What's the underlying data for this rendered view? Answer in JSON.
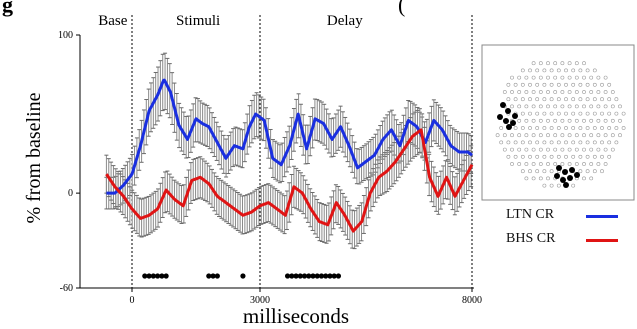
{
  "chart_data": {
    "type": "line",
    "title_fragment": "g",
    "title_right_fragment": "(",
    "xlabel": "milliseconds",
    "ylabel": "% from baseline",
    "xlim": [
      -750,
      8000
    ],
    "ylim": [
      -60,
      100
    ],
    "y_ticks": [
      100,
      0,
      -60
    ],
    "x_ticks": [
      0,
      3000,
      8000
    ],
    "epochs": [
      {
        "label": "Base",
        "center": -450
      },
      {
        "label": "Stimuli",
        "center": 1550
      },
      {
        "label": "Delay",
        "center": 5000
      }
    ],
    "epoch_boundaries": [
      0,
      3000,
      8000
    ],
    "series": [
      {
        "name": "LTN CR",
        "color": "#1a2fe0",
        "x": [
          -600,
          -400,
          -200,
          0,
          200,
          400,
          600,
          750,
          900,
          1100,
          1300,
          1500,
          1650,
          1800,
          2000,
          2200,
          2400,
          2600,
          2750,
          2900,
          3100,
          3300,
          3500,
          3700,
          3900,
          4100,
          4300,
          4500,
          4700,
          4900,
          5100,
          5300,
          5500,
          5700,
          5900,
          6100,
          6300,
          6500,
          6700,
          6900,
          7100,
          7300,
          7500,
          7700,
          7900,
          8000
        ],
        "y": [
          0,
          0,
          5,
          12,
          30,
          52,
          62,
          72,
          64,
          43,
          34,
          47,
          44,
          42,
          32,
          22,
          30,
          28,
          42,
          50,
          46,
          22,
          18,
          30,
          50,
          28,
          47,
          44,
          34,
          42,
          30,
          16,
          20,
          24,
          34,
          40,
          30,
          46,
          42,
          32,
          46,
          40,
          30,
          26,
          26,
          24
        ],
        "err": [
          10,
          10,
          11,
          12,
          13,
          15,
          17,
          18,
          17,
          14,
          13,
          14,
          13,
          13,
          12,
          12,
          12,
          12,
          13,
          14,
          13,
          12,
          12,
          13,
          14,
          12,
          13,
          13,
          12,
          13,
          12,
          11,
          11,
          12,
          12,
          13,
          12,
          13,
          13,
          12,
          13,
          13,
          12,
          12,
          12,
          12
        ]
      },
      {
        "name": "BHS CR",
        "color": "#e01414",
        "x": [
          -600,
          -400,
          -200,
          0,
          200,
          400,
          600,
          800,
          1000,
          1200,
          1400,
          1600,
          1800,
          2000,
          2200,
          2400,
          2600,
          2800,
          3000,
          3200,
          3400,
          3600,
          3800,
          4000,
          4200,
          4400,
          4600,
          4800,
          5000,
          5200,
          5400,
          5600,
          5800,
          6000,
          6200,
          6400,
          6600,
          6800,
          7000,
          7200,
          7400,
          7600,
          7800,
          8000
        ],
        "y": [
          12,
          4,
          -2,
          -10,
          -16,
          -14,
          -10,
          2,
          -4,
          -8,
          8,
          10,
          6,
          -2,
          -6,
          -10,
          -14,
          -12,
          -8,
          -6,
          -10,
          -14,
          4,
          0,
          -10,
          -18,
          -20,
          -6,
          -14,
          -24,
          -18,
          0,
          10,
          14,
          20,
          28,
          36,
          40,
          10,
          -2,
          10,
          -2,
          8,
          18
        ],
        "err": [
          12,
          12,
          12,
          12,
          12,
          12,
          12,
          13,
          12,
          12,
          13,
          13,
          12,
          12,
          12,
          12,
          12,
          12,
          12,
          12,
          12,
          12,
          13,
          12,
          12,
          12,
          12,
          12,
          12,
          12,
          12,
          12,
          12,
          13,
          13,
          13,
          14,
          14,
          13,
          12,
          12,
          12,
          12,
          13
        ]
      }
    ],
    "significance_markers_x": [
      300,
      400,
      500,
      600,
      700,
      800,
      1800,
      1900,
      2000,
      2600,
      3650,
      3750,
      3850,
      3950,
      4050,
      4150,
      4250,
      4350,
      4450,
      4550,
      4650,
      4750,
      4850
    ],
    "legend_position": "bottom-right",
    "inset": {
      "type": "electrode-map",
      "left_cluster_count": 7,
      "right_cluster_count": 8
    },
    "grid": false
  }
}
